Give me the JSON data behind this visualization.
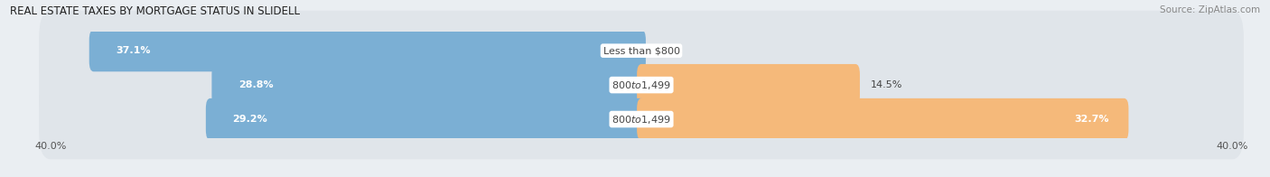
{
  "title": "REAL ESTATE TAXES BY MORTGAGE STATUS IN SLIDELL",
  "source": "Source: ZipAtlas.com",
  "rows": [
    {
      "label": "Less than $800",
      "without_mortgage": 37.1,
      "with_mortgage": 0.0
    },
    {
      "label": "$800 to $1,499",
      "without_mortgage": 28.8,
      "with_mortgage": 14.5
    },
    {
      "label": "$800 to $1,499",
      "without_mortgage": 29.2,
      "with_mortgage": 32.7
    }
  ],
  "x_max": 40.0,
  "x_min": 0.0,
  "total_width": 80.0,
  "color_without": "#7BAFD4",
  "color_with": "#F5B97A",
  "color_without_light": "#ADC9E4",
  "color_with_light": "#F9DCBA",
  "bar_height": 0.62,
  "background_color": "#EAEEF2",
  "bar_bg_color": "#E0E5EA",
  "title_fontsize": 8.5,
  "label_fontsize": 8.0,
  "pct_fontsize": 8.0,
  "tick_fontsize": 8.0,
  "legend_fontsize": 8.0,
  "axis_label_color": "#555555",
  "pct_white_color": "#FFFFFF",
  "pct_dark_color": "#444444",
  "label_box_color": "#FFFFFF"
}
